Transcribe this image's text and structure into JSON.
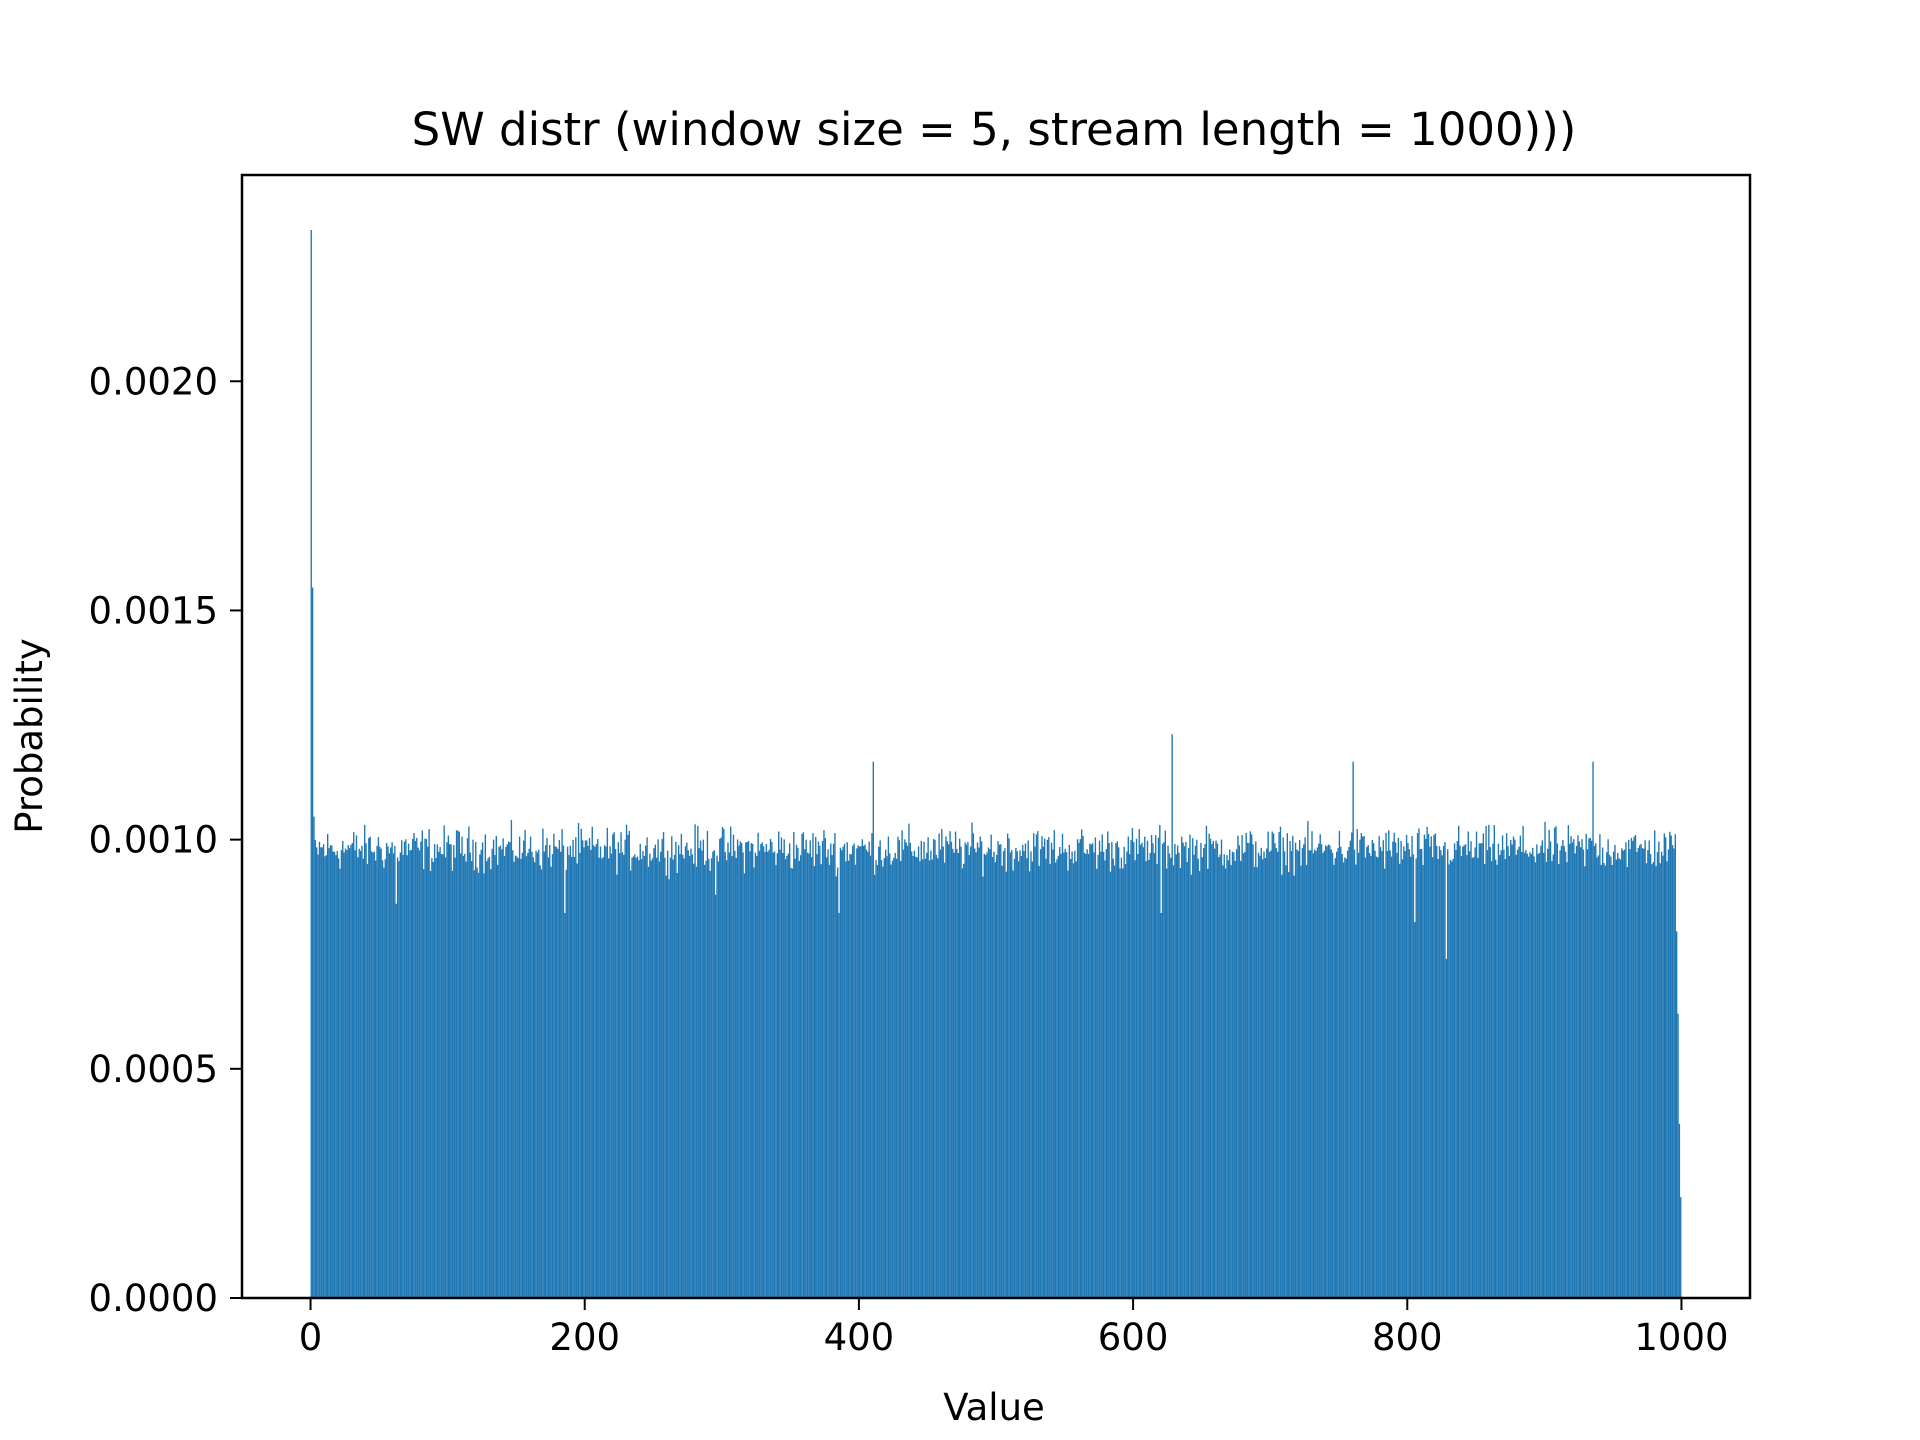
{
  "chart_data": {
    "type": "bar",
    "title": "SW distr (window size = 5, stream length = 1000)))",
    "xlabel": "Value",
    "ylabel": "Probability",
    "xlim": [
      -50,
      1050
    ],
    "ylim": [
      0,
      0.00245
    ],
    "xticks": [
      0,
      200,
      400,
      600,
      800,
      1000
    ],
    "xtick_labels": [
      "0",
      "200",
      "400",
      "600",
      "800",
      "1000"
    ],
    "yticks": [
      0.0,
      0.0005,
      0.001,
      0.0015,
      0.002
    ],
    "ytick_labels": [
      "0.0000",
      "0.0005",
      "0.0010",
      "0.0015",
      "0.0020"
    ],
    "grid": false,
    "legend": "none",
    "bar_color": "#1f77b4",
    "bins": {
      "x_start": 0,
      "x_end": 999,
      "bin_count": 1000,
      "baseline_probability": 0.00098,
      "spread": 7e-05,
      "notable_values": [
        {
          "x": 0,
          "y": 0.00233
        },
        {
          "x": 1,
          "y": 0.00155
        },
        {
          "x": 2,
          "y": 0.00105
        },
        {
          "x": 62,
          "y": 0.00086
        },
        {
          "x": 185,
          "y": 0.00084
        },
        {
          "x": 295,
          "y": 0.00088
        },
        {
          "x": 385,
          "y": 0.00084
        },
        {
          "x": 410,
          "y": 0.00117
        },
        {
          "x": 620,
          "y": 0.00084
        },
        {
          "x": 628,
          "y": 0.00123
        },
        {
          "x": 760,
          "y": 0.00117
        },
        {
          "x": 805,
          "y": 0.00082
        },
        {
          "x": 828,
          "y": 0.00074
        },
        {
          "x": 935,
          "y": 0.00117
        },
        {
          "x": 996,
          "y": 0.0008
        },
        {
          "x": 997,
          "y": 0.00062
        },
        {
          "x": 998,
          "y": 0.00038
        },
        {
          "x": 999,
          "y": 0.00022
        }
      ]
    }
  }
}
